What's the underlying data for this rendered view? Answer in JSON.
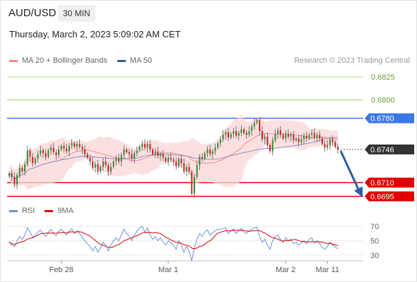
{
  "header": {
    "symbol": "AUD/USD",
    "timeframe": "30 MIN",
    "timestamp": "Thursday, March 2, 2023 5:09:02 AM CET"
  },
  "price_legend": [
    {
      "label": "MA 20 + Bollinger Bands",
      "color": "#f08a8a"
    },
    {
      "label": "MA 50",
      "color": "#2f5d9e"
    }
  ],
  "copyright": "Research © 2023 Trading Central",
  "rsi_legend": [
    {
      "label": "RSI",
      "color": "#6b93d6"
    },
    {
      "label": "9MA",
      "color": "#e00000"
    }
  ],
  "chart_data": [
    {
      "type": "line",
      "panel": "price",
      "levels": [
        {
          "value": 0.6825,
          "label": "0.6825",
          "color": "#9acd5e",
          "kind": "target"
        },
        {
          "value": 0.68,
          "label": "0.6800",
          "color": "#9acd5e",
          "kind": "target"
        },
        {
          "value": 0.678,
          "label": "0.6780",
          "color": "#3b78e7",
          "kind": "resistance"
        },
        {
          "value": 0.6746,
          "label": "0.6746",
          "color": "#333333",
          "kind": "last-price"
        },
        {
          "value": 0.671,
          "label": "0.6710",
          "color": "#e00000",
          "kind": "support"
        },
        {
          "value": 0.6695,
          "label": "0.6695",
          "color": "#e00000",
          "kind": "support"
        }
      ],
      "ylim": [
        0.669,
        0.6832
      ],
      "close": [
        0.672,
        0.6716,
        0.6708,
        0.6718,
        0.6726,
        0.6722,
        0.673,
        0.6745,
        0.6738,
        0.6731,
        0.6736,
        0.6741,
        0.6745,
        0.6742,
        0.6738,
        0.6745,
        0.6748,
        0.6743,
        0.674,
        0.6746,
        0.675,
        0.6747,
        0.6744,
        0.675,
        0.6753,
        0.6749,
        0.6752,
        0.6749,
        0.6746,
        0.6741,
        0.6737,
        0.6733,
        0.6726,
        0.673,
        0.6722,
        0.6727,
        0.6733,
        0.6729,
        0.6722,
        0.6727,
        0.6733,
        0.6736,
        0.6733,
        0.674,
        0.6746,
        0.6743,
        0.6741,
        0.6736,
        0.6742,
        0.6745,
        0.6749,
        0.6752,
        0.6748,
        0.6752,
        0.6746,
        0.6741,
        0.6744,
        0.6739,
        0.6741,
        0.6737,
        0.6733,
        0.6737,
        0.6735,
        0.6733,
        0.6728,
        0.6736,
        0.6731,
        0.6722,
        0.6727,
        0.6722,
        0.6698,
        0.6716,
        0.6729,
        0.6738,
        0.6736,
        0.6742,
        0.6746,
        0.6741,
        0.6744,
        0.6748,
        0.6753,
        0.6757,
        0.6762,
        0.6765,
        0.6759,
        0.6763,
        0.6766,
        0.6761,
        0.6764,
        0.6768,
        0.6764,
        0.6762,
        0.6766,
        0.6771,
        0.6775,
        0.6778,
        0.6766,
        0.6757,
        0.676,
        0.6751,
        0.6744,
        0.6756,
        0.6763,
        0.6767,
        0.6762,
        0.6758,
        0.6763,
        0.676,
        0.6762,
        0.6756,
        0.6758,
        0.6754,
        0.6757,
        0.6761,
        0.6758,
        0.6762,
        0.6764,
        0.6759,
        0.6762,
        0.6758,
        0.6752,
        0.6748,
        0.6751,
        0.6757,
        0.6754,
        0.6749,
        0.6746
      ],
      "x_ticks": [
        {
          "label": "Feb 28",
          "index": 20
        },
        {
          "label": "Mar 1",
          "index": 61
        },
        {
          "label": "Mar 2",
          "index": 106
        },
        {
          "label": "Mar 11",
          "index": 122
        }
      ],
      "forecast": {
        "from_value": 0.6746,
        "to_value": 0.6695
      }
    },
    {
      "type": "line",
      "panel": "rsi",
      "ylim": [
        25,
        75
      ],
      "y_ticks": [
        70,
        50,
        30
      ],
      "series": [
        {
          "name": "RSI",
          "values": [
            48,
            44,
            42,
            50,
            56,
            52,
            58,
            68,
            62,
            55,
            58,
            62,
            65,
            60,
            56,
            62,
            66,
            60,
            57,
            63,
            66,
            62,
            58,
            64,
            67,
            60,
            64,
            60,
            55,
            50,
            46,
            42,
            36,
            42,
            34,
            40,
            48,
            44,
            36,
            44,
            50,
            54,
            50,
            58,
            66,
            60,
            56,
            50,
            58,
            63,
            68,
            70,
            62,
            68,
            58,
            52,
            56,
            50,
            54,
            48,
            44,
            50,
            47,
            44,
            38,
            50,
            44,
            34,
            42,
            36,
            22,
            40,
            52,
            60,
            56,
            62,
            65,
            58,
            61,
            64,
            66,
            66,
            67,
            68,
            60,
            64,
            66,
            60,
            64,
            67,
            62,
            60,
            64,
            66,
            68,
            69,
            56,
            48,
            52,
            44,
            38,
            50,
            56,
            58,
            52,
            48,
            54,
            50,
            52,
            46,
            48,
            44,
            47,
            50,
            46,
            52,
            54,
            47,
            50,
            46,
            41,
            38,
            42,
            48,
            44,
            41,
            39
          ]
        }
      ]
    }
  ]
}
